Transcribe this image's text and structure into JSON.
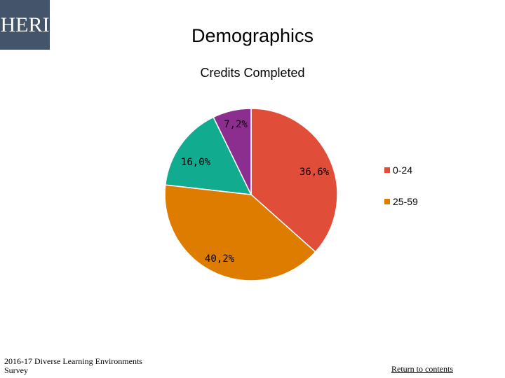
{
  "logo_text": "HERI",
  "page_title": "Demographics",
  "footer": {
    "survey": "2016-17 Diverse Learning Environments Survey",
    "return_link": "Return to contents"
  },
  "chart_data": {
    "type": "pie",
    "title": "Credits Completed",
    "slices": [
      {
        "label": "0-24",
        "value": 36.6,
        "display": "36,6%",
        "color": "#e04e39"
      },
      {
        "label": "25-59",
        "value": 40.2,
        "display": "40,2%",
        "color": "#de7c00"
      },
      {
        "label": "",
        "value": 16.0,
        "display": "16,0%",
        "color": "#11ab8f"
      },
      {
        "label": "",
        "value": 7.2,
        "display": "7,2%",
        "color": "#8b2e8f"
      }
    ],
    "legend": {
      "position": "right"
    }
  }
}
